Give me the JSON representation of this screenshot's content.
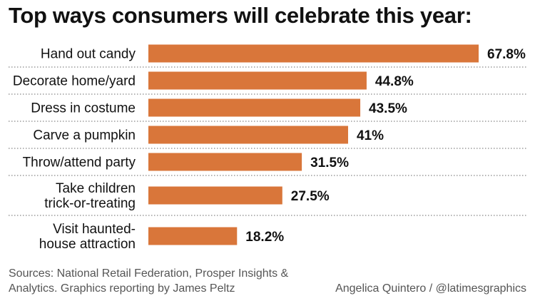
{
  "title": "Top ways consumers will celebrate this year:",
  "sources": "Sources: National Retail Federation, Prosper Insights & Analytics. Graphics reporting by James Peltz",
  "credit": "Angelica Quintero / @latimesgraphics",
  "colors": {
    "bar": "#d9763a",
    "divider": "#888888",
    "label": "#111111"
  },
  "chart_data": {
    "type": "bar",
    "orientation": "horizontal",
    "categories": [
      [
        "Hand out candy"
      ],
      [
        "Decorate home/yard"
      ],
      [
        "Dress in costume"
      ],
      [
        "Carve a pumpkin"
      ],
      [
        "Throw/attend party"
      ],
      [
        "Take children",
        "trick-or-treating"
      ],
      [
        "Visit haunted-",
        "house attraction"
      ]
    ],
    "values": [
      67.8,
      44.8,
      43.5,
      41,
      31.5,
      27.5,
      18.2
    ],
    "value_labels": [
      "67.8%",
      "44.8%",
      "43.5%",
      "41%",
      "31.5%",
      "27.5%",
      "18.2%"
    ],
    "xlim": [
      0,
      67.8
    ],
    "grid": false,
    "legend": "none"
  }
}
